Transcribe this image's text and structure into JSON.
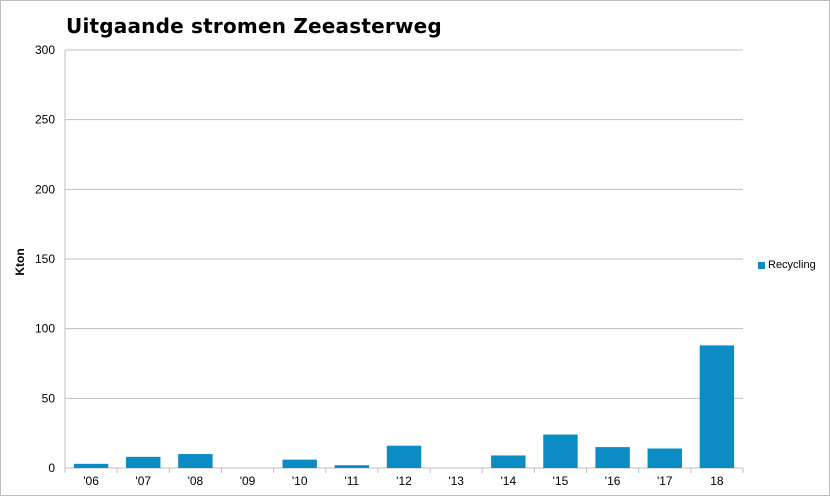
{
  "chart_data": {
    "type": "bar",
    "title": "Uitgaande stromen Zeeasterweg",
    "xlabel": "",
    "ylabel": "Kton",
    "categories": [
      "'06",
      "'07",
      "'08",
      "'09",
      "'10",
      "'11",
      "'12",
      "'13",
      "'14",
      "'15",
      "'16",
      "'17",
      "18"
    ],
    "series": [
      {
        "name": "Recycling",
        "color": "#0b8cc4",
        "values": [
          3,
          8,
          10,
          0,
          6,
          2,
          16,
          0,
          9,
          24,
          15,
          14,
          88
        ]
      }
    ],
    "ylim": [
      0,
      300
    ],
    "yticks": [
      0,
      50,
      100,
      150,
      200,
      250,
      300
    ],
    "grid": true,
    "legend_position": "right"
  }
}
